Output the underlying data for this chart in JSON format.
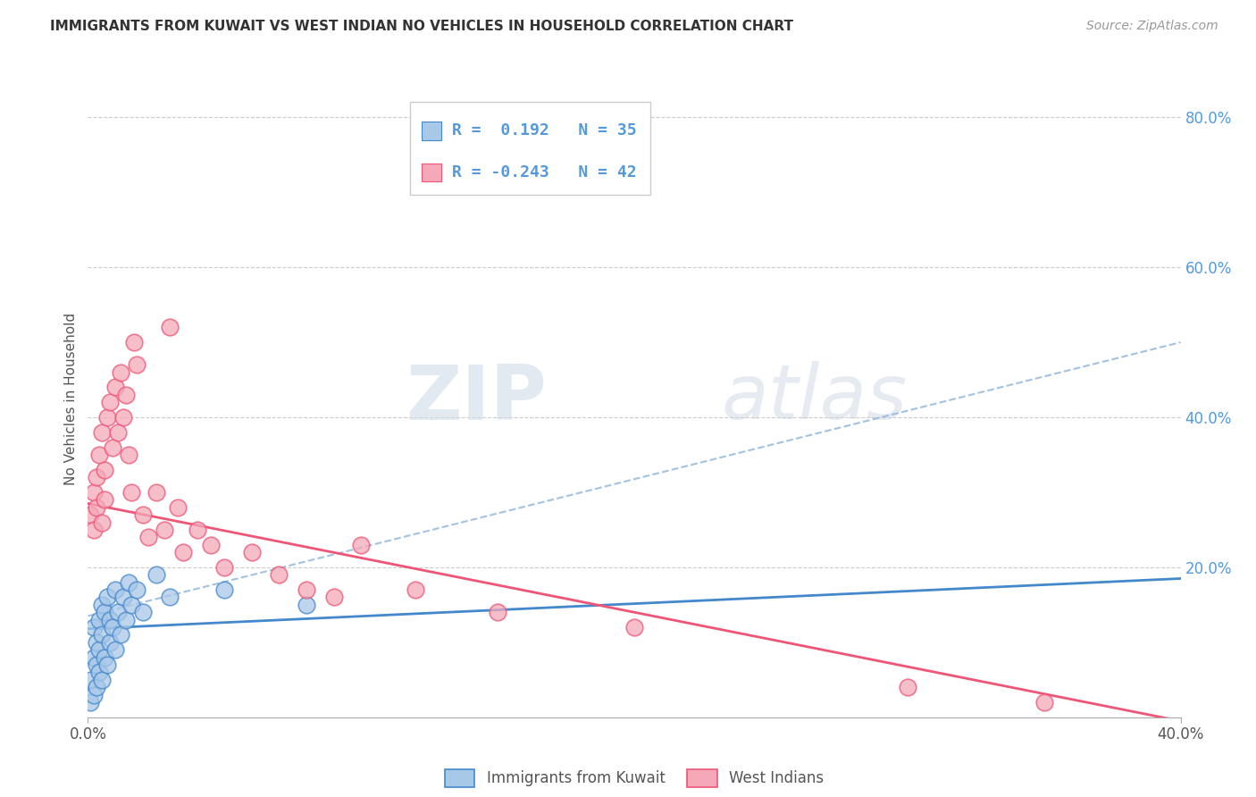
{
  "title": "IMMIGRANTS FROM KUWAIT VS WEST INDIAN NO VEHICLES IN HOUSEHOLD CORRELATION CHART",
  "source": "Source: ZipAtlas.com",
  "ylabel": "No Vehicles in Household",
  "legend_kuwait": "Immigrants from Kuwait",
  "legend_west_indian": "West Indians",
  "r_kuwait": 0.192,
  "n_kuwait": 35,
  "r_west_indian": -0.243,
  "n_west_indian": 42,
  "color_kuwait": "#a8c8e8",
  "color_west_indian": "#f4a8b8",
  "line_color_kuwait": "#4488cc",
  "line_color_west_indian": "#ee5577",
  "trendline_dashed_color": "#99bbdd",
  "xmin": 0.0,
  "xmax": 0.4,
  "ymin": 0.0,
  "ymax": 0.85,
  "ytick_right": [
    0.0,
    0.2,
    0.4,
    0.6,
    0.8
  ],
  "ytick_right_labels": [
    "",
    "20.0%",
    "40.0%",
    "60.0%",
    "80.0%"
  ],
  "background_color": "#ffffff",
  "watermark_zip": "ZIP",
  "watermark_atlas": "atlas",
  "kuwait_x": [
    0.001,
    0.001,
    0.002,
    0.002,
    0.002,
    0.003,
    0.003,
    0.003,
    0.004,
    0.004,
    0.004,
    0.005,
    0.005,
    0.005,
    0.006,
    0.006,
    0.007,
    0.007,
    0.008,
    0.008,
    0.009,
    0.01,
    0.01,
    0.011,
    0.012,
    0.013,
    0.014,
    0.015,
    0.016,
    0.018,
    0.02,
    0.025,
    0.03,
    0.05,
    0.08
  ],
  "kuwait_y": [
    0.02,
    0.05,
    0.03,
    0.08,
    0.12,
    0.04,
    0.07,
    0.1,
    0.06,
    0.09,
    0.13,
    0.05,
    0.11,
    0.15,
    0.08,
    0.14,
    0.07,
    0.16,
    0.1,
    0.13,
    0.12,
    0.09,
    0.17,
    0.14,
    0.11,
    0.16,
    0.13,
    0.18,
    0.15,
    0.17,
    0.14,
    0.19,
    0.16,
    0.17,
    0.15
  ],
  "west_indian_x": [
    0.001,
    0.002,
    0.002,
    0.003,
    0.003,
    0.004,
    0.005,
    0.005,
    0.006,
    0.006,
    0.007,
    0.008,
    0.009,
    0.01,
    0.011,
    0.012,
    0.013,
    0.014,
    0.015,
    0.016,
    0.017,
    0.018,
    0.02,
    0.022,
    0.025,
    0.028,
    0.03,
    0.033,
    0.035,
    0.04,
    0.045,
    0.05,
    0.06,
    0.07,
    0.08,
    0.09,
    0.1,
    0.12,
    0.15,
    0.2,
    0.3,
    0.35
  ],
  "west_indian_y": [
    0.27,
    0.25,
    0.3,
    0.28,
    0.32,
    0.35,
    0.26,
    0.38,
    0.33,
    0.29,
    0.4,
    0.42,
    0.36,
    0.44,
    0.38,
    0.46,
    0.4,
    0.43,
    0.35,
    0.3,
    0.5,
    0.47,
    0.27,
    0.24,
    0.3,
    0.25,
    0.52,
    0.28,
    0.22,
    0.25,
    0.23,
    0.2,
    0.22,
    0.19,
    0.17,
    0.16,
    0.23,
    0.17,
    0.14,
    0.12,
    0.04,
    0.02
  ],
  "trendline_kuwait_x0": 0.0,
  "trendline_kuwait_x1": 0.4,
  "trendline_kuwait_y0": 0.118,
  "trendline_kuwait_y1": 0.185,
  "trendline_west_x0": 0.0,
  "trendline_west_x1": 0.4,
  "trendline_west_y0": 0.285,
  "trendline_west_y1": -0.005,
  "trendline_dashed_x0": 0.0,
  "trendline_dashed_x1": 0.4,
  "trendline_dashed_y0": 0.135,
  "trendline_dashed_y1": 0.5
}
